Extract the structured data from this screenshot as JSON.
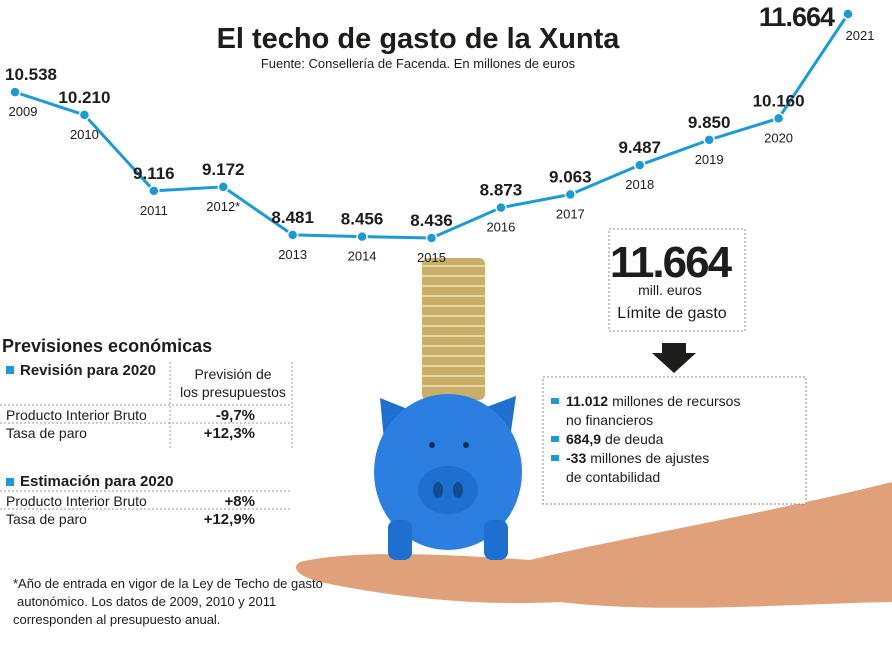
{
  "chart_data": {
    "type": "line",
    "title": "El techo de gasto de la Xunta",
    "subtitle": "Fuente: Consellería de Facenda. En millones de euros",
    "categories": [
      "2009",
      "2010",
      "2011",
      "2012*",
      "2013",
      "2014",
      "2015",
      "2016",
      "2017",
      "2018",
      "2019",
      "2020",
      "2021"
    ],
    "values": [
      10538,
      10210,
      9116,
      9172,
      8481,
      8456,
      8436,
      8873,
      9063,
      9487,
      9850,
      10160,
      11664
    ],
    "value_labels": [
      "10.538",
      "10.210",
      "9.116",
      "9.172",
      "8.481",
      "8.456",
      "8.436",
      "8.873",
      "9.063",
      "9.487",
      "9.850",
      "10.160",
      "11.664"
    ],
    "color": "#1a9ad6"
  },
  "panel": {
    "value": "11.664",
    "unit": "mill. euros",
    "label": "Límite de gasto",
    "items": [
      {
        "value": "11.012",
        "text": [
          "millones de recursos",
          "no financieros"
        ]
      },
      {
        "value": "684,9",
        "text": [
          "de deuda"
        ]
      },
      {
        "value": "-33",
        "text": [
          "millones de ajustes",
          "de contabilidad"
        ]
      }
    ]
  },
  "forecasts": {
    "title": "Previsiones económicas",
    "revision": {
      "title": "Revisión para 2020",
      "column": [
        "Previsión de",
        "los presupuestos"
      ],
      "rows": [
        [
          "Producto Interior Bruto",
          "-9,7%"
        ],
        [
          "Tasa de paro",
          "+12,3%"
        ]
      ]
    },
    "estimate": {
      "title": "Estimación para 2020",
      "rows": [
        [
          "Producto Interior Bruto",
          "+8%"
        ],
        [
          "Tasa de paro",
          "+12,9%"
        ]
      ]
    }
  },
  "footnote": [
    "*Año de entrada en vigor de la Ley de Techo de gasto",
    "autonómico. Los datos de 2009, 2010 y 2011",
    "corresponden al presupuesto anual."
  ]
}
